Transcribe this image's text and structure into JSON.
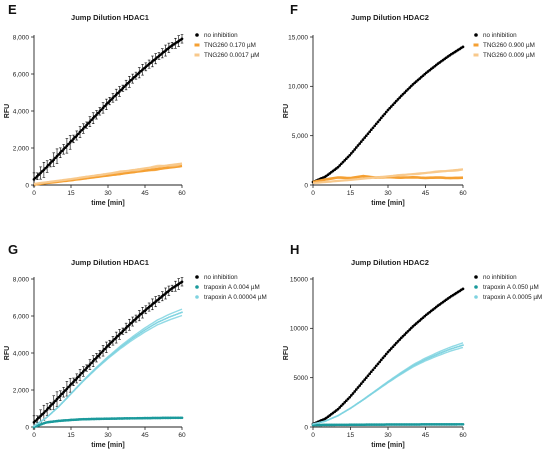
{
  "chart_data": [
    {
      "panel_label": "E",
      "type": "line",
      "title": "Jump Dilution HDAC1",
      "xlabel": "time [min]",
      "ylabel": "RFU",
      "xlim": [
        0,
        60
      ],
      "ylim": [
        0,
        8000
      ],
      "x_ticks": [
        "0",
        "15",
        "30",
        "45",
        "60"
      ],
      "y_ticks": [
        "0",
        "2,000",
        "4,000",
        "6,000",
        "8,000"
      ],
      "grid": false,
      "legend_position": "top-right",
      "series": [
        {
          "name": "no inhibition",
          "color": "#000000",
          "marker": "dot",
          "error_bars": true,
          "x": [
            0,
            5,
            10,
            15,
            20,
            25,
            30,
            35,
            40,
            45,
            50,
            55,
            60
          ],
          "y": [
            300,
            950,
            1650,
            2350,
            3050,
            3750,
            4450,
            5100,
            5750,
            6350,
            6900,
            7450,
            7900
          ]
        },
        {
          "name": "TNG260 0.170 µM",
          "color": "#f5a033",
          "marker": "line",
          "x": [
            0,
            15,
            30,
            45,
            60
          ],
          "y": [
            30,
            260,
            520,
            780,
            1030
          ]
        },
        {
          "name": "TNG260 0.0017 µM",
          "color": "#f8c98c",
          "marker": "line",
          "x": [
            0,
            15,
            30,
            45,
            60
          ],
          "y": [
            60,
            320,
            610,
            900,
            1160
          ]
        }
      ]
    },
    {
      "panel_label": "F",
      "type": "line",
      "title": "Jump Dilution HDAC2",
      "xlabel": "time [min]",
      "ylabel": "RFU",
      "xlim": [
        0,
        60
      ],
      "ylim": [
        0,
        15000
      ],
      "x_ticks": [
        "0",
        "15",
        "30",
        "45",
        "60"
      ],
      "y_ticks": [
        "0",
        "5,000",
        "10,000",
        "15,000"
      ],
      "grid": false,
      "legend_position": "top-right",
      "series": [
        {
          "name": "no inhibition",
          "color": "#000000",
          "marker": "dot",
          "x": [
            0,
            5,
            10,
            15,
            20,
            25,
            30,
            35,
            40,
            45,
            50,
            55,
            60
          ],
          "y": [
            300,
            850,
            1800,
            3100,
            4600,
            6100,
            7600,
            8950,
            10200,
            11300,
            12300,
            13200,
            14000
          ]
        },
        {
          "name": "TNG260 0.900 µM",
          "color": "#f5a033",
          "marker": "line",
          "x": [
            0,
            5,
            10,
            15,
            20,
            25,
            30,
            35,
            40,
            45,
            50,
            55,
            60
          ],
          "y": [
            300,
            560,
            760,
            700,
            900,
            750,
            800,
            740,
            780,
            720,
            760,
            700,
            740
          ]
        },
        {
          "name": "TNG260 0.009 µM",
          "color": "#f8c98c",
          "marker": "line",
          "x": [
            0,
            15,
            30,
            45,
            60
          ],
          "y": [
            200,
            520,
            880,
            1220,
            1580
          ]
        }
      ]
    },
    {
      "panel_label": "G",
      "type": "line",
      "title": "Jump Dilution HDAC1",
      "xlabel": "time [min]",
      "ylabel": "RFU",
      "xlim": [
        0,
        60
      ],
      "ylim": [
        0,
        8000
      ],
      "x_ticks": [
        "0",
        "15",
        "30",
        "45",
        "60"
      ],
      "y_ticks": [
        "0",
        "2,000",
        "4,000",
        "6,000",
        "8,000"
      ],
      "grid": false,
      "legend_position": "top-right",
      "series": [
        {
          "name": "no inhibition",
          "color": "#000000",
          "marker": "dot",
          "error_bars": true,
          "x": [
            0,
            5,
            10,
            15,
            20,
            25,
            30,
            35,
            40,
            45,
            50,
            55,
            60
          ],
          "y": [
            250,
            900,
            1600,
            2300,
            3000,
            3700,
            4400,
            5050,
            5700,
            6300,
            6850,
            7400,
            7850
          ]
        },
        {
          "name": "trapoxin A 0.004 µM",
          "color": "#1b9a9c",
          "marker": "dot",
          "x": [
            0,
            5,
            10,
            15,
            20,
            30,
            45,
            60
          ],
          "y": [
            0,
            250,
            330,
            380,
            420,
            450,
            480,
            500
          ]
        },
        {
          "name": "trapoxin A 0.00004 µM",
          "color": "#7fd3e0",
          "marker": "dot",
          "band": true,
          "x": [
            0,
            5,
            10,
            15,
            20,
            25,
            30,
            35,
            40,
            45,
            50,
            55,
            60
          ],
          "y": [
            50,
            500,
            1100,
            1800,
            2500,
            3150,
            3750,
            4300,
            4800,
            5250,
            5650,
            5950,
            6200
          ]
        }
      ]
    },
    {
      "panel_label": "H",
      "type": "line",
      "title": "Jump Dilution HDAC2",
      "xlabel": "time [min]",
      "ylabel": "RFU",
      "xlim": [
        0,
        60
      ],
      "ylim": [
        0,
        15000
      ],
      "x_ticks": [
        "0",
        "15",
        "30",
        "45",
        "60"
      ],
      "y_ticks": [
        "0",
        "5000",
        "10000",
        "15000"
      ],
      "grid": false,
      "legend_position": "top-right",
      "series": [
        {
          "name": "no inhibition",
          "color": "#000000",
          "marker": "dot",
          "x": [
            0,
            5,
            10,
            15,
            20,
            25,
            30,
            35,
            40,
            45,
            50,
            55,
            60
          ],
          "y": [
            300,
            850,
            1800,
            3100,
            4600,
            6100,
            7600,
            8950,
            10200,
            11300,
            12300,
            13200,
            14000
          ]
        },
        {
          "name": "trapoxin A 0.050 µM",
          "color": "#1b9a9c",
          "marker": "dot",
          "x": [
            0,
            15,
            30,
            45,
            60
          ],
          "y": [
            200,
            230,
            250,
            260,
            270
          ]
        },
        {
          "name": "trapoxin A 0.0005 µM",
          "color": "#7fd3e0",
          "marker": "dot",
          "band": true,
          "x": [
            0,
            5,
            10,
            15,
            20,
            25,
            30,
            35,
            40,
            45,
            50,
            55,
            60
          ],
          "y": [
            300,
            600,
            1150,
            1900,
            2750,
            3650,
            4550,
            5400,
            6200,
            6850,
            7400,
            7900,
            8300
          ]
        }
      ]
    }
  ]
}
